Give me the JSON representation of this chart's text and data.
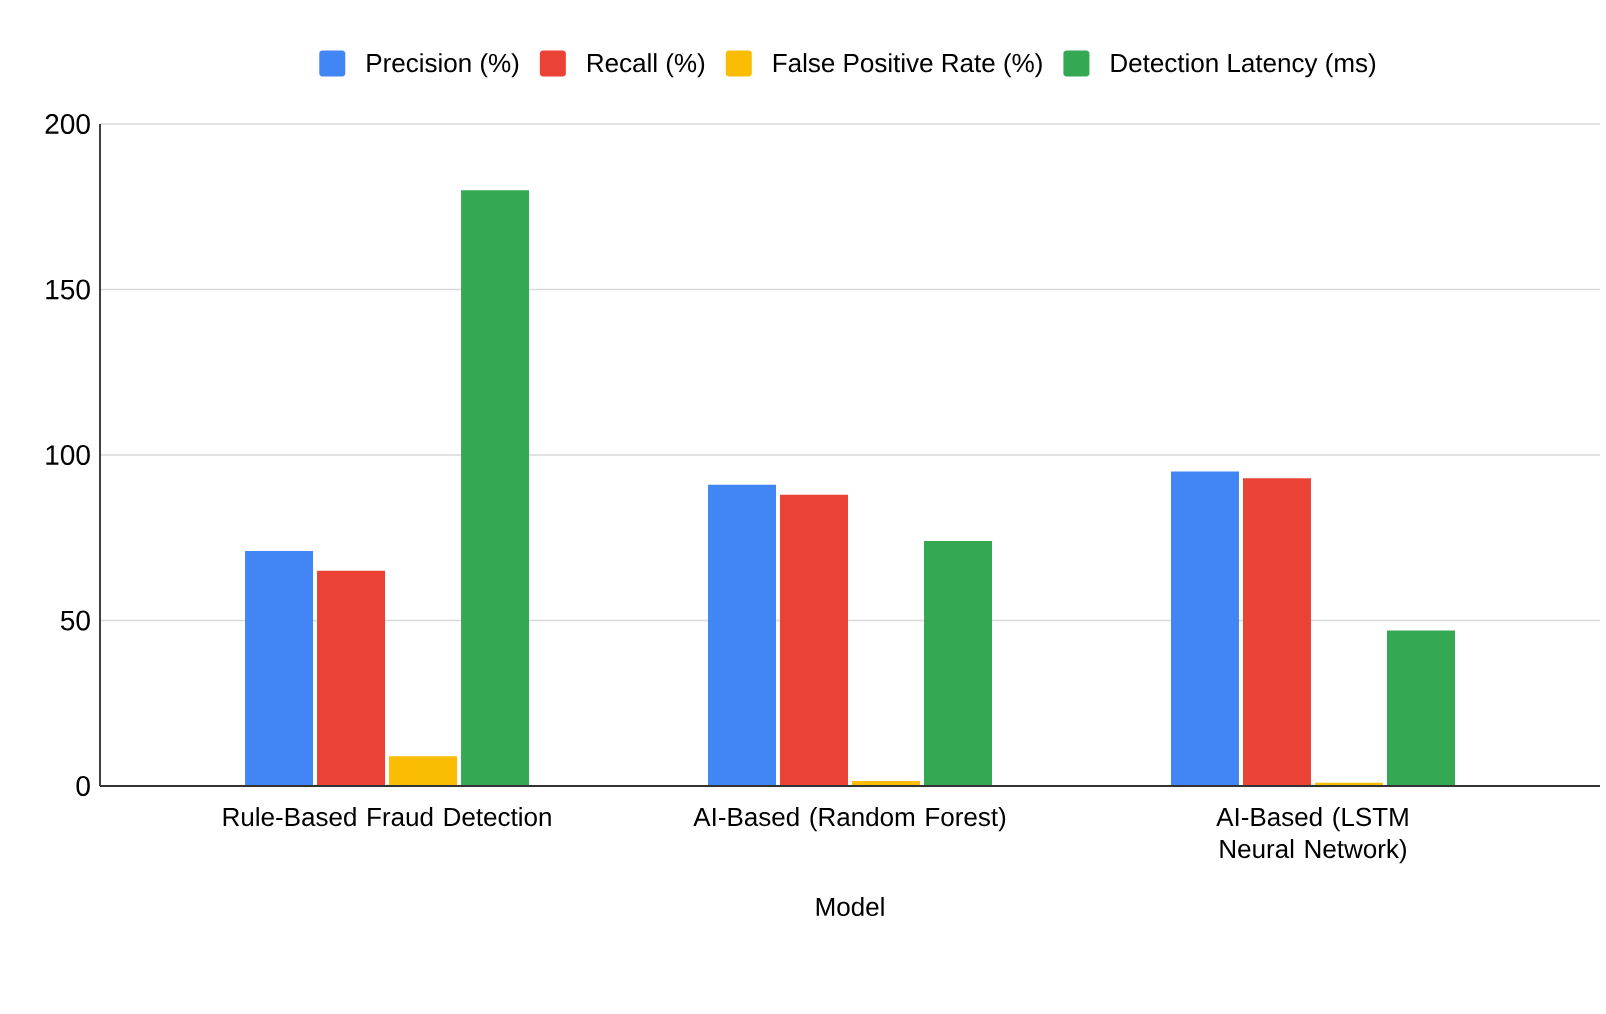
{
  "chart_data": {
    "type": "bar",
    "xlabel": "Model",
    "categories": [
      "Rule-Based Fraud Detection",
      "AI-Based (Random Forest)",
      "AI-Based (LSTM Neural Network)"
    ],
    "series": [
      {
        "name": "Precision (%)",
        "color": "#4285f4",
        "values": [
          71,
          91,
          95
        ]
      },
      {
        "name": "Recall (%)",
        "color": "#ea4335",
        "values": [
          65,
          88,
          93
        ]
      },
      {
        "name": "False Positive Rate (%)",
        "color": "#fbbc04",
        "values": [
          9,
          1.5,
          1
        ]
      },
      {
        "name": "Detection Latency (ms)",
        "color": "#34a853",
        "values": [
          180,
          74,
          47
        ]
      }
    ],
    "ylim": [
      0,
      200
    ],
    "yticks": [
      0,
      50,
      100,
      150,
      200
    ],
    "grid": "y",
    "legend": "top"
  }
}
